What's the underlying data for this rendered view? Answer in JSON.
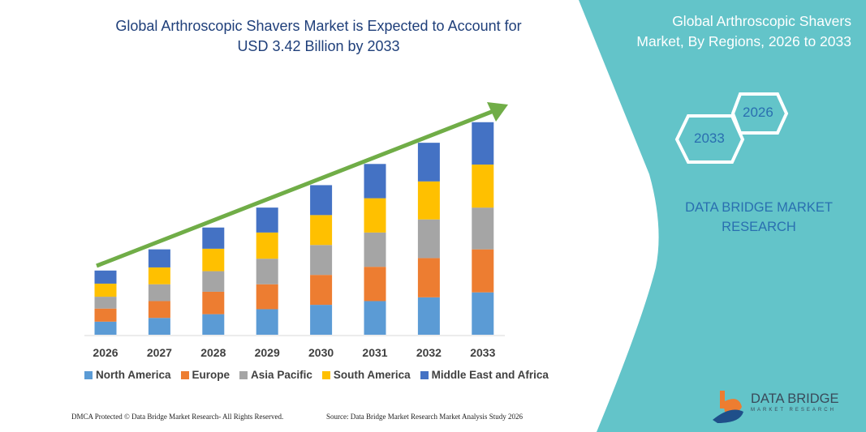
{
  "header": {
    "title_line1": "Global Arthroscopic Shavers Market is Expected to Account for",
    "title_line2": "USD 3.42 Billion by 2033"
  },
  "side_panel": {
    "title_line1": "Global Arthroscopic Shavers",
    "title_line2": "Market, By Regions, 2026 to 2033",
    "hex_start": "2026",
    "hex_end": "2033",
    "brand_line1": "DATA BRIDGE MARKET",
    "brand_line2": "RESEARCH",
    "panel_color": "#63C4C9"
  },
  "logo": {
    "name": "DATA BRIDGE",
    "tagline": "MARKET RESEARCH"
  },
  "footer": {
    "left": "DMCA Protected © Data Bridge Market Research- All Rights Reserved.",
    "right": "Source: Data Bridge Market Research Market Analysis Study 2026"
  },
  "chart_data": {
    "type": "bar",
    "stacked": true,
    "categories": [
      "2026",
      "2027",
      "2028",
      "2029",
      "2030",
      "2031",
      "2032",
      "2033"
    ],
    "series": [
      {
        "name": "North America",
        "color": "#5B9BD5",
        "values": [
          0.21,
          0.27,
          0.33,
          0.41,
          0.48,
          0.54,
          0.6,
          0.68
        ]
      },
      {
        "name": "Europe",
        "color": "#ED7D31",
        "values": [
          0.21,
          0.27,
          0.36,
          0.4,
          0.48,
          0.55,
          0.63,
          0.69
        ]
      },
      {
        "name": "Asia Pacific",
        "color": "#A5A5A5",
        "values": [
          0.19,
          0.27,
          0.33,
          0.41,
          0.48,
          0.55,
          0.62,
          0.67
        ]
      },
      {
        "name": "South America",
        "color": "#FFC000",
        "values": [
          0.21,
          0.27,
          0.36,
          0.42,
          0.48,
          0.55,
          0.61,
          0.69
        ]
      },
      {
        "name": "Middle East and Africa",
        "color": "#4472C4",
        "values": [
          0.21,
          0.29,
          0.34,
          0.4,
          0.48,
          0.55,
          0.62,
          0.68
        ]
      }
    ],
    "y_axis_shown": false,
    "grid": false,
    "legend_position": "bottom",
    "trend_arrow_color": "#70AD47"
  }
}
